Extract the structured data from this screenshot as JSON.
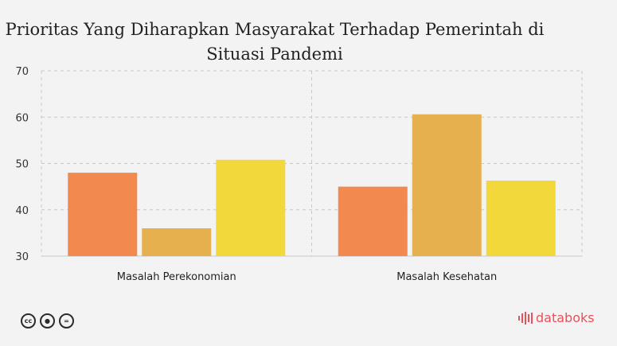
{
  "chart_data": {
    "type": "bar",
    "title": "Prioritas Yang Diharapkan Masyarakat Terhadap Pemerintah di Situasi Pandemi",
    "categories": [
      "Masalah Perekonomian",
      "Masalah Kesehatan"
    ],
    "series": [
      {
        "values": [
          48.0,
          45.0
        ],
        "color": "#f28a50"
      },
      {
        "values": [
          36.0,
          60.6
        ],
        "color": "#e6b04f"
      },
      {
        "values": [
          50.8,
          46.3
        ],
        "color": "#f2d83b"
      }
    ],
    "xlabel": "",
    "ylabel": "",
    "ylim": [
      30,
      70
    ],
    "yticks": [
      30,
      40,
      50,
      60,
      70
    ],
    "grid": true,
    "legend": "none"
  },
  "footer": {
    "license_icons": [
      "cc-icon",
      "by-icon",
      "nd-icon"
    ],
    "brand": "databoks",
    "brand_color": "#e8505b"
  }
}
